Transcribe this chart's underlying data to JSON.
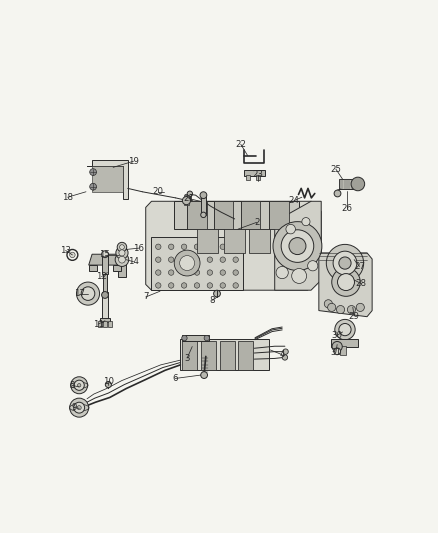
{
  "bg_color": "#f5f5f0",
  "line_color": "#2a2a2a",
  "fill_light": "#d8d8d0",
  "fill_mid": "#b8b8b0",
  "fill_dark": "#909088",
  "fig_width": 4.38,
  "fig_height": 5.33,
  "dpi": 100,
  "leaders": [
    [
      2,
      0.595,
      0.638,
      0.54,
      0.618
    ],
    [
      3,
      0.39,
      0.238,
      0.405,
      0.272
    ],
    [
      4,
      0.67,
      0.248,
      0.635,
      0.262
    ],
    [
      5,
      0.05,
      0.158,
      0.072,
      0.153
    ],
    [
      6,
      0.355,
      0.178,
      0.43,
      0.188
    ],
    [
      7,
      0.268,
      0.418,
      0.31,
      0.435
    ],
    [
      8,
      0.465,
      0.408,
      0.478,
      0.418
    ],
    [
      9,
      0.058,
      0.092,
      0.072,
      0.09
    ],
    [
      10,
      0.158,
      0.168,
      0.158,
      0.158
    ],
    [
      11,
      0.128,
      0.338,
      0.148,
      0.348
    ],
    [
      12,
      0.138,
      0.478,
      0.155,
      0.49
    ],
    [
      13,
      0.032,
      0.555,
      0.052,
      0.542
    ],
    [
      14,
      0.232,
      0.522,
      0.21,
      0.528
    ],
    [
      15,
      0.148,
      0.542,
      0.188,
      0.542
    ],
    [
      16,
      0.248,
      0.562,
      0.21,
      0.558
    ],
    [
      17,
      0.072,
      0.428,
      0.098,
      0.428
    ],
    [
      18,
      0.038,
      0.712,
      0.092,
      0.728
    ],
    [
      19,
      0.232,
      0.818,
      0.172,
      0.8
    ],
    [
      20,
      0.305,
      0.728,
      0.322,
      0.728
    ],
    [
      21,
      0.395,
      0.708,
      0.428,
      0.7
    ],
    [
      22,
      0.548,
      0.868,
      0.568,
      0.835
    ],
    [
      23,
      0.598,
      0.778,
      0.598,
      0.76
    ],
    [
      24,
      0.705,
      0.702,
      0.728,
      0.712
    ],
    [
      25,
      0.828,
      0.795,
      0.848,
      0.765
    ],
    [
      26,
      0.862,
      0.678,
      0.862,
      0.73
    ],
    [
      27,
      0.898,
      0.508,
      0.882,
      0.528
    ],
    [
      28,
      0.902,
      0.458,
      0.882,
      0.468
    ],
    [
      29,
      0.882,
      0.362,
      0.878,
      0.388
    ],
    [
      30,
      0.832,
      0.305,
      0.848,
      0.315
    ],
    [
      31,
      0.828,
      0.255,
      0.832,
      0.278
    ]
  ]
}
